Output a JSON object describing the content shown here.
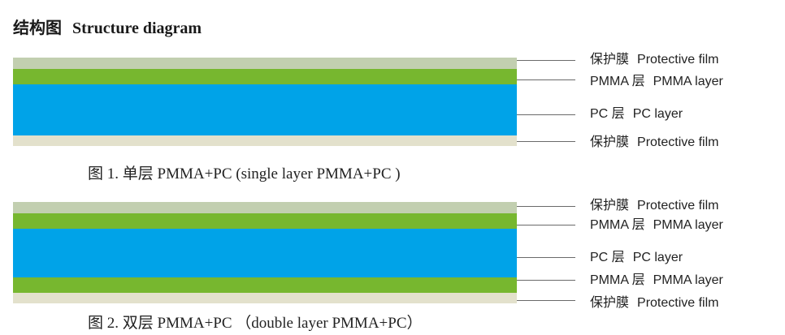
{
  "heading": {
    "zh": "结构图",
    "en": "Structure diagram"
  },
  "colors": {
    "protective_film_top": "#c2cfb0",
    "pmma_layer": "#77b72f",
    "pc_layer": "#00a3e8",
    "protective_film_bottom": "#e3e1cc",
    "leader_line": "#6a6a6a"
  },
  "figure1": {
    "caption": "图 1.  单层 PMMA+PC (single layer PMMA+PC )",
    "labels": [
      {
        "zh": "保护膜",
        "en": "Protective film"
      },
      {
        "zh": "PMMA 层",
        "en": "PMMA layer"
      },
      {
        "zh": "PC 层",
        "en": "PC layer"
      },
      {
        "zh": "保护膜",
        "en": "Protective film"
      }
    ]
  },
  "figure2": {
    "caption": "图 2.  双层 PMMA+PC   （double layer PMMA+PC）",
    "labels": [
      {
        "zh": "保护膜",
        "en": "Protective film"
      },
      {
        "zh": "PMMA 层",
        "en": "PMMA layer"
      },
      {
        "zh": "PC 层",
        "en": "PC layer"
      },
      {
        "zh": "PMMA 层",
        "en": "PMMA layer"
      },
      {
        "zh": "保护膜",
        "en": "Protective film"
      }
    ]
  }
}
